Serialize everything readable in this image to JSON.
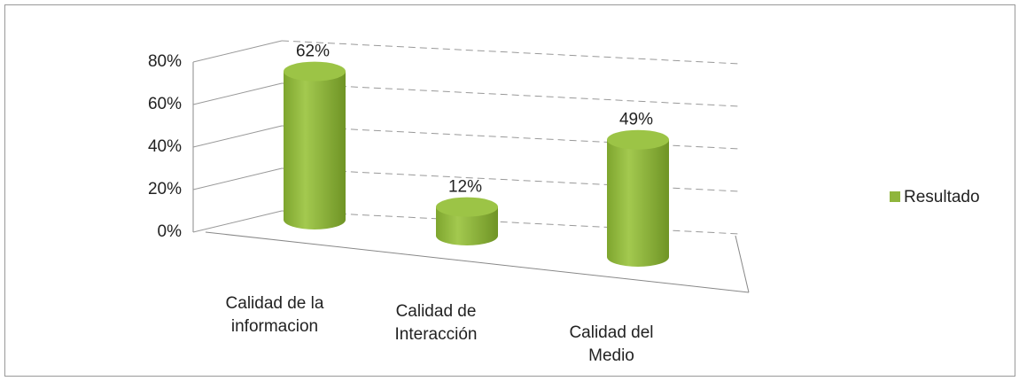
{
  "chart_data": {
    "type": "bar3d",
    "categories": [
      "Calidad de la informacion",
      "Calidad de Interacción",
      "Calidad del Medio"
    ],
    "series": [
      {
        "name": "Resultado",
        "color": "#8fb53c",
        "values": [
          62,
          12,
          49
        ],
        "value_labels": [
          "62%",
          "12%",
          "49%"
        ]
      }
    ],
    "ylim": [
      0,
      80
    ],
    "yticks": [
      {
        "value": 0,
        "label": "0%"
      },
      {
        "value": 20,
        "label": "20%"
      },
      {
        "value": 40,
        "label": "40%"
      },
      {
        "value": 60,
        "label": "60%"
      },
      {
        "value": 80,
        "label": "80%"
      }
    ],
    "grid": true,
    "legend": "right"
  }
}
